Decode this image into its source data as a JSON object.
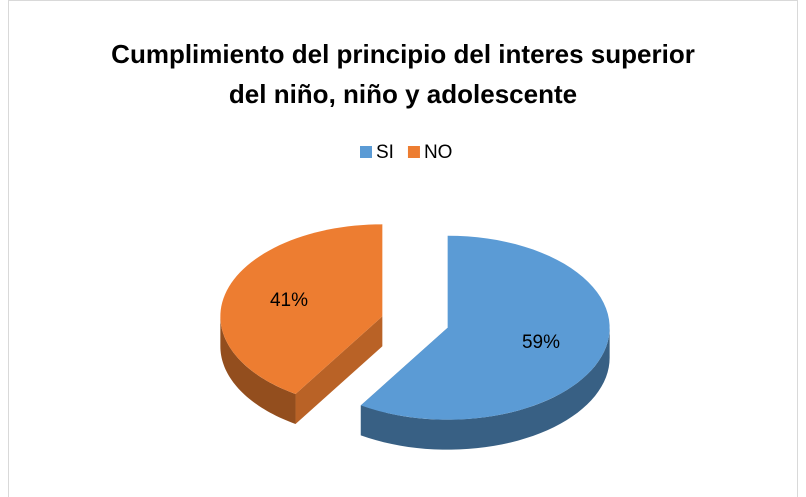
{
  "chart_data": {
    "type": "pie",
    "title": "Cumplimiento del principio del interes superior\ndel niño, niño y adolescente",
    "categories": [
      "SI",
      "NO"
    ],
    "values": [
      59,
      41
    ],
    "value_labels": [
      "59%",
      "41%"
    ],
    "colors": [
      "#5b9bd5",
      "#ed7d31"
    ],
    "legend": "top"
  }
}
